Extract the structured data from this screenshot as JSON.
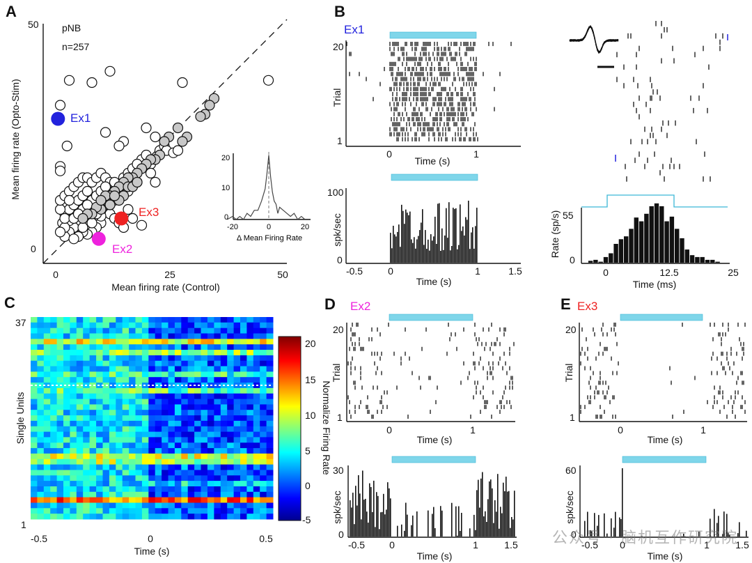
{
  "panel_letters": [
    "A",
    "B",
    "C",
    "D",
    "E"
  ],
  "panelA": {
    "group": "pNB",
    "n_label": "n=257",
    "xlabel": "Mean firing rate (Control)",
    "ylabel": "Mean firing rate (Opto-Stim)",
    "ticks": [
      "0",
      "25",
      "50"
    ],
    "yticks": [
      "0",
      "50"
    ],
    "ex1": {
      "label": "Ex1",
      "color": "#2222dd"
    },
    "ex2": {
      "label": "Ex2",
      "color": "#ee22dd"
    },
    "ex3": {
      "label": "Ex3",
      "color": "#ee2222"
    },
    "inset": {
      "xlabel": "Δ Mean Firing Rate",
      "xticks": [
        "-20",
        "0",
        "20"
      ],
      "yticks": [
        "0",
        "10",
        "20"
      ]
    }
  },
  "panelB": {
    "title": "Ex1",
    "title_color": "#2222dd",
    "raster_ylabel": "Trial",
    "raster_yticks": [
      "20",
      "1"
    ],
    "raster_xticks": [
      "0",
      "1"
    ],
    "xlabel": "Time (s)",
    "psth_ylabel": "spk/sec",
    "psth_yticks": [
      "100",
      "0"
    ],
    "psth_xticks": [
      "-0.5",
      "0",
      "0.5",
      "1",
      "1.5"
    ],
    "fine_ylabel": "Rate (sp/s)",
    "fine_yticks": [
      "55",
      "0"
    ],
    "fine_xticks": [
      "0",
      "12.5",
      "25"
    ],
    "fine_xlabel": "Time (ms)"
  },
  "panelC": {
    "ylabel": "Single Units",
    "yticks": [
      "37",
      "1"
    ],
    "xticks": [
      "-0.5",
      "0",
      "0.5"
    ],
    "xlabel": "Time (s)",
    "cbar_label": "Normalize Firing Rate",
    "cbar_ticks": [
      "20",
      "15",
      "10",
      "5",
      "0",
      "-5"
    ]
  },
  "panelD": {
    "title": "Ex2",
    "title_color": "#ee22dd",
    "raster_ylabel": "Trial",
    "raster_yticks": [
      "20",
      "1"
    ],
    "raster_xticks": [
      "0",
      "1"
    ],
    "xlabel": "Time (s)",
    "psth_ylabel": "spk/sec",
    "psth_yticks": [
      "30",
      "0"
    ],
    "psth_xticks": [
      "-0.5",
      "0",
      "0.5",
      "1",
      "1.5"
    ]
  },
  "panelE": {
    "title": "Ex3",
    "title_color": "#ee2222",
    "raster_ylabel": "Trial",
    "raster_yticks": [
      "20",
      "1"
    ],
    "raster_xticks": [
      "0",
      "1"
    ],
    "xlabel": "Time (s)",
    "psth_ylabel": "spk/sec",
    "psth_yticks": [
      "60",
      "0"
    ],
    "psth_xticks": [
      "-0.5",
      "0",
      "0.5",
      "1",
      "1.5"
    ]
  },
  "watermark": "公众号 · 脑机互作研究院",
  "colors": {
    "stim": "#7fd6ea",
    "gray_point": "#c8c8c8"
  },
  "chart_data": [
    {
      "type": "scatter",
      "xlabel": "Mean firing rate (Control)",
      "ylabel": "Mean firing rate (Opto-Stim)",
      "xlim": [
        0,
        50
      ],
      "ylim": [
        0,
        50
      ],
      "points": [
        [
          1,
          32
        ],
        [
          3,
          37.5
        ],
        [
          8,
          37
        ],
        [
          12,
          39.5
        ],
        [
          28,
          37
        ],
        [
          47,
          37.5
        ],
        [
          11,
          26
        ],
        [
          2.5,
          23
        ],
        [
          1,
          18.5
        ],
        [
          1,
          17.5
        ],
        [
          15,
          24
        ],
        [
          14,
          23
        ],
        [
          20,
          27
        ],
        [
          22,
          25
        ],
        [
          23,
          22
        ],
        [
          24,
          23
        ],
        [
          19,
          20
        ],
        [
          21,
          19
        ],
        [
          24.5,
          22
        ],
        [
          26,
          21.5
        ],
        [
          27,
          22
        ],
        [
          21,
          17
        ],
        [
          22,
          15
        ],
        [
          18,
          15
        ],
        [
          16,
          13
        ],
        [
          16,
          15
        ],
        [
          14,
          14
        ],
        [
          13,
          13
        ],
        [
          12,
          12
        ],
        [
          11,
          11
        ],
        [
          10,
          10
        ],
        [
          9,
          9
        ],
        [
          8,
          8.5
        ],
        [
          7,
          8
        ],
        [
          6,
          7
        ],
        [
          5,
          6
        ],
        [
          4,
          5
        ],
        [
          3,
          4
        ],
        [
          2,
          3
        ],
        [
          1.5,
          6
        ],
        [
          2,
          8
        ],
        [
          3,
          9
        ],
        [
          4,
          10
        ],
        [
          5,
          11
        ],
        [
          6,
          12
        ],
        [
          7,
          13
        ],
        [
          8,
          11
        ],
        [
          9,
          12
        ],
        [
          10,
          13
        ],
        [
          11,
          10
        ],
        [
          12,
          8
        ],
        [
          13,
          7
        ],
        [
          14,
          6
        ],
        [
          15,
          5
        ],
        [
          19,
          5.5
        ],
        [
          17,
          7
        ],
        [
          16,
          9
        ],
        [
          10,
          6
        ],
        [
          9,
          5
        ],
        [
          8,
          4
        ],
        [
          7,
          3.5
        ],
        [
          6,
          4
        ],
        [
          5,
          3
        ],
        [
          4,
          2.5
        ],
        [
          3,
          6.5
        ],
        [
          2,
          5
        ],
        [
          1,
          4
        ],
        [
          1,
          9
        ],
        [
          1,
          11
        ],
        [
          2,
          12
        ],
        [
          3,
          13
        ],
        [
          4,
          14
        ],
        [
          5,
          15
        ],
        [
          6,
          16
        ],
        [
          7,
          16
        ],
        [
          8,
          15
        ],
        [
          9,
          16
        ],
        [
          10,
          17
        ],
        [
          11,
          16
        ],
        [
          12,
          15
        ],
        [
          13,
          11
        ],
        [
          14,
          12
        ],
        [
          15,
          16
        ],
        [
          16,
          17
        ],
        [
          17,
          18
        ],
        [
          18,
          19
        ],
        [
          20,
          21
        ],
        [
          2,
          7
        ],
        [
          4,
          7
        ],
        [
          6,
          9
        ],
        [
          8,
          6
        ],
        [
          10,
          7.5
        ],
        [
          12,
          10
        ],
        [
          5,
          8
        ],
        [
          7,
          10
        ],
        [
          9,
          8
        ],
        [
          11,
          14
        ],
        [
          13,
          15
        ],
        [
          6,
          5
        ],
        [
          3,
          11
        ]
      ],
      "gray_points": [
        [
          35,
          33.5
        ],
        [
          34,
          32
        ],
        [
          33,
          30
        ],
        [
          32,
          29.5
        ],
        [
          27,
          27
        ],
        [
          29,
          25
        ],
        [
          28,
          24
        ],
        [
          25,
          25
        ],
        [
          24,
          24
        ],
        [
          23,
          21
        ],
        [
          22,
          20
        ],
        [
          21,
          20
        ],
        [
          20,
          19
        ],
        [
          19,
          18
        ],
        [
          18,
          17
        ],
        [
          17,
          16
        ],
        [
          16,
          16
        ],
        [
          15,
          15
        ],
        [
          14,
          14
        ],
        [
          13,
          13
        ],
        [
          12,
          12
        ],
        [
          11,
          11
        ],
        [
          10,
          9
        ],
        [
          9,
          9.5
        ],
        [
          8,
          8
        ],
        [
          7,
          8
        ],
        [
          6,
          7
        ],
        [
          15,
          12
        ],
        [
          12,
          10
        ],
        [
          14,
          11
        ],
        [
          16,
          14
        ],
        [
          11,
          12
        ],
        [
          13,
          12
        ],
        [
          10,
          11
        ],
        [
          17,
          14
        ],
        [
          18,
          15
        ]
      ],
      "highlight": [
        {
          "name": "Ex1",
          "x": 0.5,
          "y": 29
        },
        {
          "name": "Ex2",
          "x": 9.5,
          "y": 2.5
        },
        {
          "name": "Ex3",
          "x": 14.5,
          "y": 7
        }
      ]
    },
    {
      "type": "line",
      "title": "inset",
      "xlabel": "Δ Mean Firing Rate",
      "xlim": [
        -25,
        25
      ],
      "ylim": [
        0,
        22
      ],
      "x": [
        -23,
        -20,
        -18,
        -16,
        -14,
        -12,
        -10,
        -8,
        -6,
        -4,
        -3,
        -2,
        -1,
        0,
        1,
        2,
        3,
        4,
        5,
        6,
        8,
        10,
        12,
        14,
        16,
        18,
        20
      ],
      "y": [
        0,
        1,
        0,
        1,
        0,
        2,
        1,
        3,
        3,
        6,
        8,
        10,
        15,
        21,
        14,
        9,
        6,
        5,
        2,
        4,
        3,
        2,
        1,
        2,
        0,
        1,
        0
      ]
    },
    {
      "type": "bar",
      "title": "Rate (sp/s) vs Time (ms)",
      "xlabel": "Time (ms)",
      "ylabel": "Rate (sp/s)",
      "xlim": [
        -5,
        25
      ],
      "ylim": [
        0,
        65
      ],
      "x": [
        -3,
        -2,
        -1,
        0,
        1,
        2,
        3,
        4,
        5,
        6,
        7,
        8,
        9,
        10,
        11,
        12,
        13,
        14,
        15,
        16,
        17,
        18,
        19,
        20,
        21,
        22
      ],
      "values": [
        2,
        3,
        1,
        6,
        10,
        20,
        25,
        28,
        36,
        48,
        44,
        52,
        60,
        63,
        60,
        44,
        49,
        36,
        26,
        14,
        8,
        6,
        6,
        3,
        3,
        1
      ]
    }
  ]
}
